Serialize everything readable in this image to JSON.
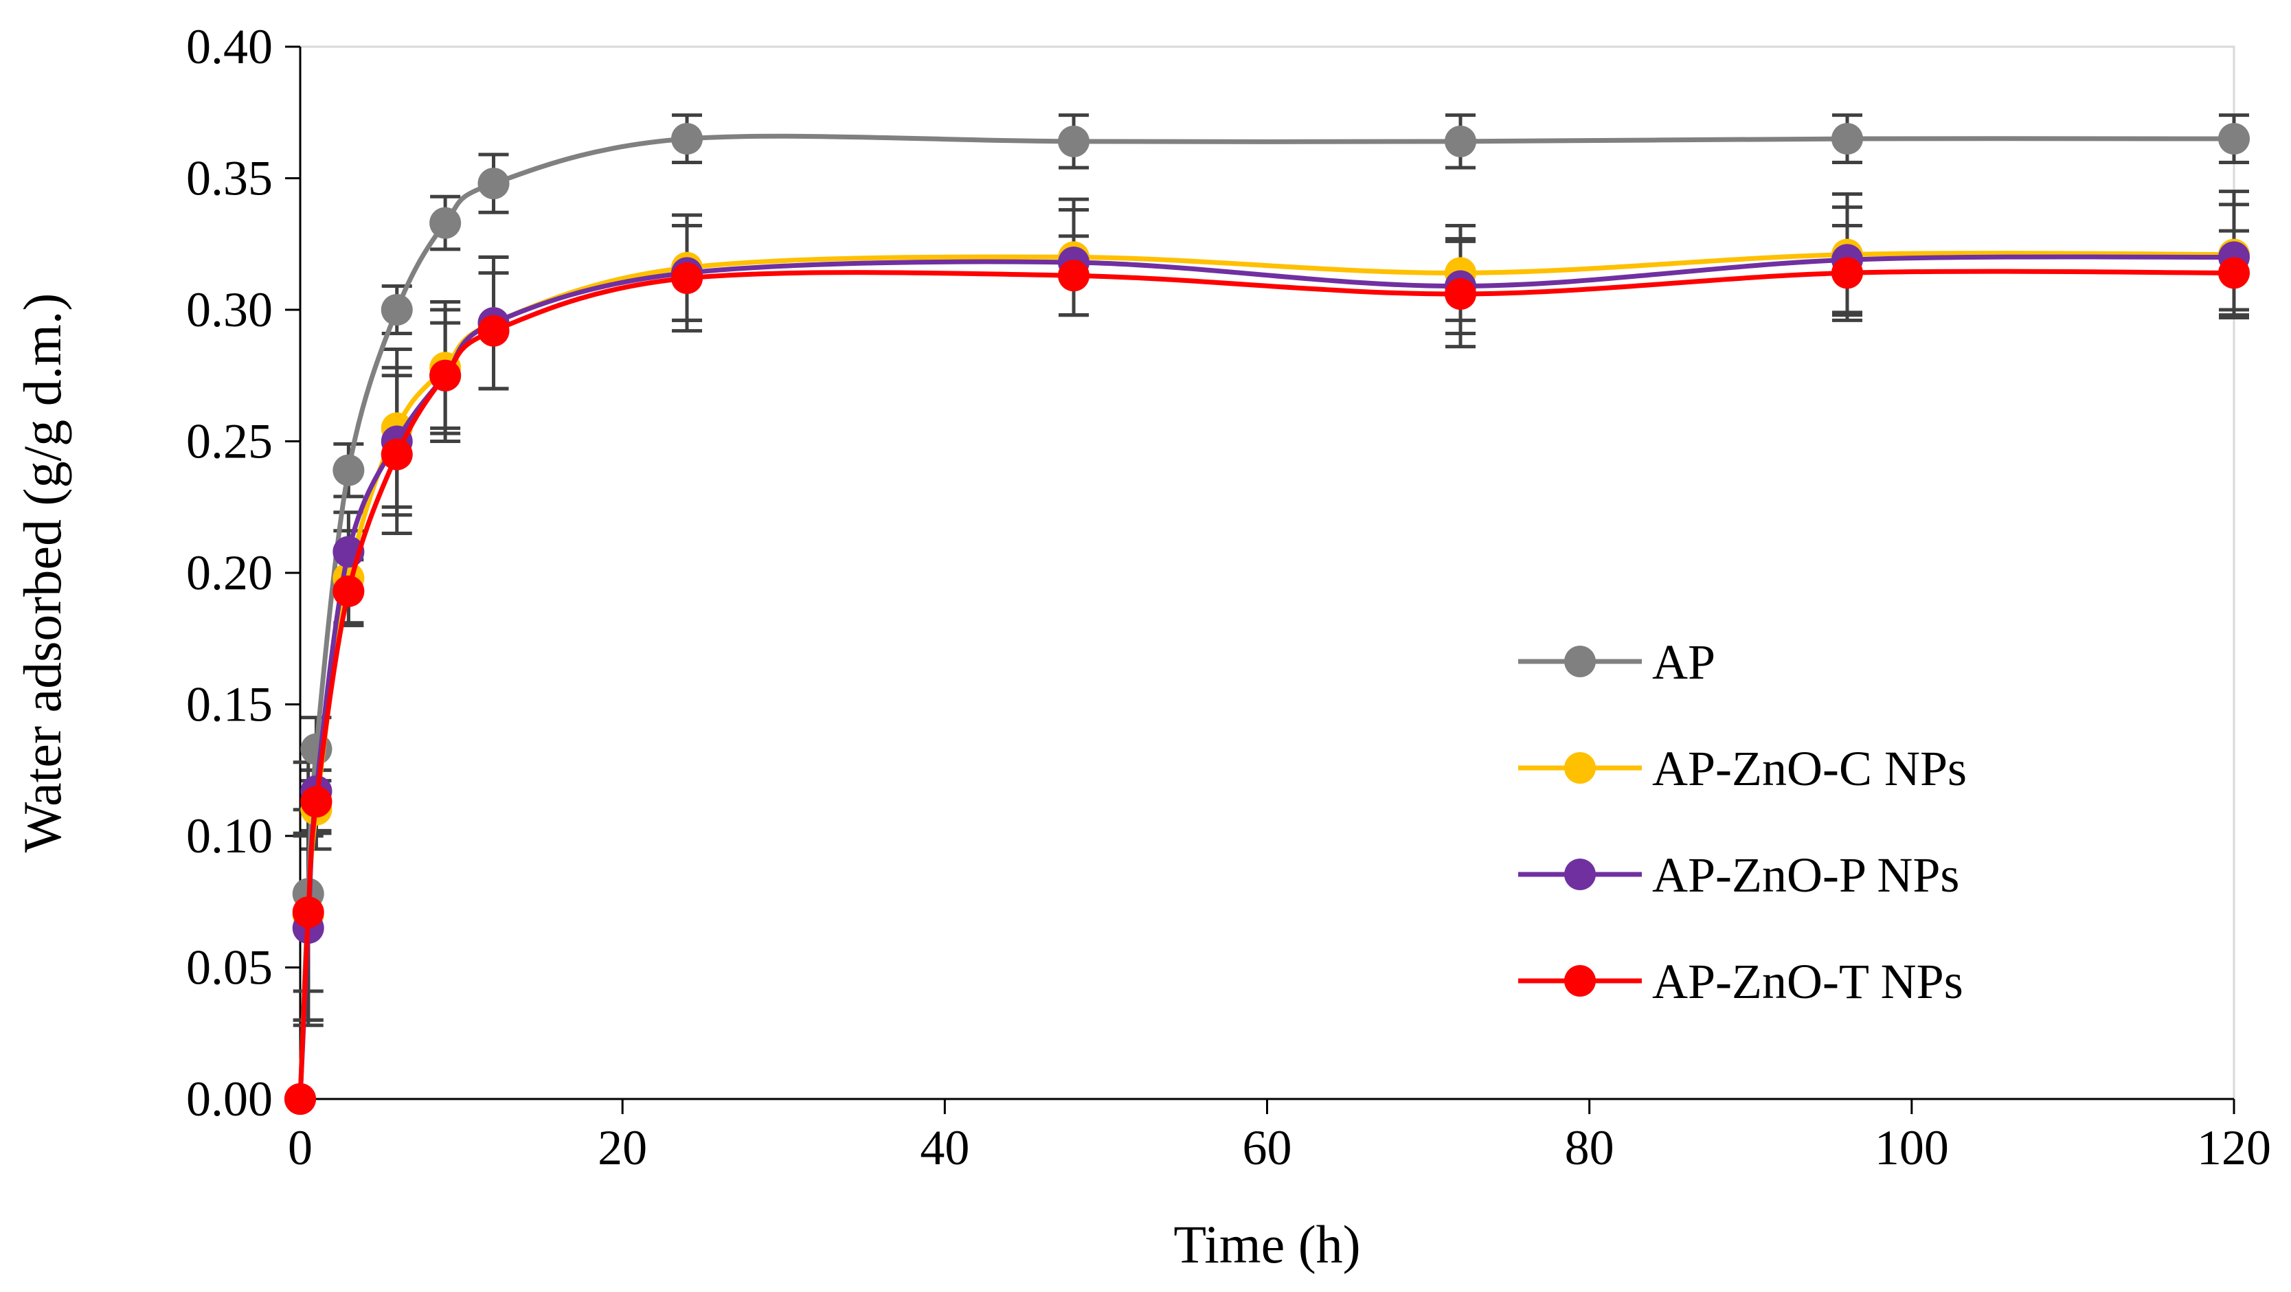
{
  "chart_data": {
    "type": "line",
    "title": "",
    "xlabel": "Time (h)",
    "ylabel": "Water adsorbed (g/g d.m.)",
    "xlim": [
      0,
      120
    ],
    "ylim": [
      0,
      0.4
    ],
    "xticks": [
      0,
      20,
      40,
      60,
      80,
      100,
      120
    ],
    "yticks": [
      0.0,
      0.05,
      0.1,
      0.15,
      0.2,
      0.25,
      0.3,
      0.35,
      0.4
    ],
    "x_tick_labels": [
      "0",
      "20",
      "40",
      "60",
      "80",
      "100",
      "120"
    ],
    "y_tick_labels": [
      "0.00",
      "0.05",
      "0.10",
      "0.15",
      "0.20",
      "0.25",
      "0.30",
      "0.35",
      "0.40"
    ],
    "grid": false,
    "legend_position": "right",
    "series": [
      {
        "name": "AP",
        "color": "#808080",
        "x": [
          0,
          0.5,
          1,
          3,
          6,
          9,
          12,
          24,
          48,
          72,
          96,
          120
        ],
        "y": [
          0,
          0.078,
          0.133,
          0.239,
          0.3,
          0.333,
          0.348,
          0.365,
          0.364,
          0.364,
          0.365,
          0.365
        ],
        "error": [
          0,
          0.05,
          0.012,
          0.01,
          0.009,
          0.01,
          0.011,
          0.009,
          0.01,
          0.01,
          0.009,
          0.009
        ]
      },
      {
        "name": "AP-ZnO-C NPs",
        "color": "#FFC000",
        "x": [
          0,
          0.5,
          1,
          3,
          6,
          9,
          12,
          24,
          48,
          72,
          96,
          120
        ],
        "y": [
          0,
          0.07,
          0.11,
          0.198,
          0.255,
          0.278,
          0.295,
          0.316,
          0.32,
          0.314,
          0.321,
          0.321
        ],
        "error": [
          0,
          0.04,
          0.015,
          0.018,
          0.03,
          0.025,
          0.025,
          0.02,
          0.022,
          0.018,
          0.023,
          0.024
        ]
      },
      {
        "name": "AP-ZnO-P NPs",
        "color": "#7030A0",
        "x": [
          0,
          0.5,
          1,
          3,
          6,
          9,
          12,
          24,
          48,
          72,
          96,
          120
        ],
        "y": [
          0,
          0.065,
          0.117,
          0.208,
          0.25,
          0.275,
          0.295,
          0.314,
          0.318,
          0.309,
          0.319,
          0.32
        ],
        "error": [
          0,
          0.035,
          0.015,
          0.015,
          0.028,
          0.025,
          0.025,
          0.018,
          0.02,
          0.018,
          0.02,
          0.02
        ]
      },
      {
        "name": "AP-ZnO-T NPs",
        "color": "#FF0000",
        "x": [
          0,
          0.5,
          1,
          3,
          6,
          9,
          12,
          24,
          48,
          72,
          96,
          120
        ],
        "y": [
          0,
          0.071,
          0.113,
          0.193,
          0.245,
          0.275,
          0.292,
          0.312,
          0.313,
          0.306,
          0.314,
          0.314
        ],
        "error": [
          0,
          0.03,
          0.012,
          0.012,
          0.03,
          0.02,
          0.022,
          0.02,
          0.015,
          0.02,
          0.018,
          0.016
        ]
      }
    ]
  }
}
